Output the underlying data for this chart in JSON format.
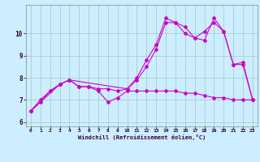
{
  "background_color": "#cceeff",
  "grid_color": "#aacccc",
  "line_color": "#cc00cc",
  "xlabel": "Windchill (Refroidissement éolien,°C)",
  "xlim": [
    -0.5,
    23.5
  ],
  "ylim": [
    5.8,
    11.3
  ],
  "yticks": [
    6,
    7,
    8,
    9,
    10
  ],
  "xticks": [
    0,
    1,
    2,
    3,
    4,
    5,
    6,
    7,
    8,
    9,
    10,
    11,
    12,
    13,
    14,
    15,
    16,
    17,
    18,
    19,
    20,
    21,
    22,
    23
  ],
  "curve1_x": [
    0,
    1,
    2,
    3,
    4,
    5,
    6,
    7,
    8,
    9,
    10,
    11,
    12,
    13,
    14,
    15,
    16,
    17,
    18,
    19,
    20,
    21,
    22,
    23
  ],
  "curve1_y": [
    6.5,
    6.9,
    7.4,
    7.7,
    7.9,
    7.6,
    7.6,
    7.4,
    6.9,
    7.1,
    7.4,
    7.4,
    7.4,
    7.4,
    7.4,
    7.4,
    7.3,
    7.3,
    7.2,
    7.1,
    7.1,
    7.0,
    7.0,
    7.0
  ],
  "curve2_x": [
    0,
    1,
    2,
    3,
    4,
    5,
    6,
    7,
    8,
    9,
    10,
    11,
    12,
    13,
    14,
    15,
    16,
    17,
    18,
    19,
    20,
    21,
    22,
    23
  ],
  "curve2_y": [
    6.5,
    7.0,
    7.4,
    7.7,
    7.9,
    7.6,
    7.6,
    7.5,
    7.5,
    7.4,
    7.5,
    7.9,
    8.5,
    9.3,
    10.5,
    10.5,
    10.0,
    9.8,
    10.1,
    10.5,
    10.1,
    8.6,
    8.6,
    7.0
  ],
  "curve3_x": [
    0,
    3,
    4,
    10,
    11,
    12,
    13,
    14,
    15,
    16,
    17,
    18,
    19,
    20,
    21,
    22,
    23
  ],
  "curve3_y": [
    6.5,
    7.7,
    7.9,
    7.5,
    8.0,
    8.8,
    9.5,
    10.7,
    10.5,
    10.3,
    9.8,
    9.7,
    10.7,
    10.1,
    8.6,
    8.7,
    7.0
  ]
}
